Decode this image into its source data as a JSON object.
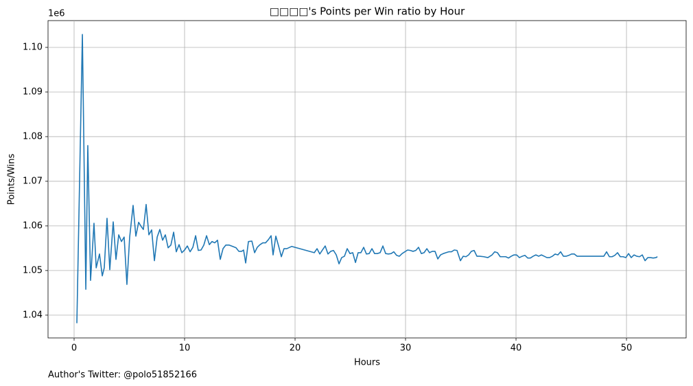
{
  "chart_data": {
    "type": "line",
    "title": "□□□□'s Points per Win ratio by Hour",
    "xlabel": "Hours",
    "ylabel": "Points/Wins",
    "y_offset_text": "1e6",
    "footer": "Author's Twitter: @polo51852166",
    "xlim": [
      -2.36,
      55.4
    ],
    "ylim": [
      1.0349,
      1.106
    ],
    "xticks": [
      0,
      10,
      20,
      30,
      40,
      50
    ],
    "yticks": [
      1.04,
      1.05,
      1.06,
      1.07,
      1.08,
      1.09,
      {
        "value": 1.1,
        "label": "1.10"
      }
    ],
    "grid": true,
    "x": [
      0.25,
      0.75,
      1.06,
      1.24,
      1.49,
      1.8,
      2.0,
      2.3,
      2.55,
      2.73,
      2.98,
      3.23,
      3.54,
      3.79,
      4.04,
      4.29,
      4.53,
      4.78,
      5.03,
      5.34,
      5.59,
      5.84,
      6.09,
      6.27,
      6.52,
      6.77,
      7.02,
      7.27,
      7.52,
      7.76,
      8.01,
      8.26,
      8.51,
      8.76,
      9.01,
      9.25,
      9.5,
      9.75,
      10.0,
      10.25,
      10.5,
      10.75,
      11.0,
      11.24,
      11.49,
      11.74,
      11.99,
      12.24,
      12.48,
      12.73,
      12.98,
      13.23,
      13.48,
      13.73,
      14.04,
      14.35,
      14.66,
      14.91,
      15.16,
      15.34,
      15.53,
      15.78,
      16.09,
      16.34,
      16.58,
      16.83,
      17.08,
      17.33,
      17.58,
      17.83,
      18.01,
      18.26,
      18.51,
      18.76,
      19.0,
      19.25,
      19.69,
      21.74,
      21.99,
      22.24,
      22.48,
      22.73,
      22.98,
      23.23,
      23.48,
      23.73,
      23.98,
      24.22,
      24.47,
      24.72,
      24.97,
      25.22,
      25.47,
      25.71,
      25.96,
      26.21,
      26.46,
      26.71,
      26.96,
      27.2,
      27.45,
      27.7,
      27.95,
      28.2,
      28.45,
      28.7,
      28.94,
      29.19,
      29.44,
      29.69,
      29.94,
      30.19,
      30.43,
      30.68,
      30.93,
      31.18,
      31.43,
      31.68,
      31.93,
      32.17,
      32.42,
      32.67,
      32.92,
      33.17,
      33.42,
      33.66,
      33.91,
      34.16,
      34.41,
      34.66,
      34.97,
      35.22,
      35.47,
      35.71,
      35.96,
      36.21,
      36.46,
      36.71,
      37.08,
      37.45,
      37.83,
      38.07,
      38.32,
      38.57,
      38.82,
      39.07,
      39.32,
      39.57,
      39.81,
      40.06,
      40.31,
      40.56,
      40.81,
      41.06,
      41.3,
      41.55,
      41.8,
      42.05,
      42.3,
      42.55,
      42.8,
      43.04,
      43.29,
      43.54,
      43.79,
      44.04,
      44.29,
      44.53,
      44.78,
      45.03,
      45.28,
      45.53,
      47.95,
      48.2,
      48.45,
      48.7,
      48.94,
      49.19,
      49.44,
      49.69,
      49.94,
      50.19,
      50.43,
      50.68,
      50.93,
      51.18,
      51.43,
      51.68,
      51.93,
      52.17,
      52.42,
      52.67,
      52.8
    ],
    "series": [
      {
        "color": "#1f77b4",
        "values": [
          1.0382,
          1.1029,
          1.0458,
          1.078,
          1.0478,
          1.0606,
          1.0506,
          1.0537,
          1.0488,
          1.0506,
          1.0617,
          1.0502,
          1.0609,
          1.0525,
          1.058,
          1.0565,
          1.0575,
          1.0469,
          1.0575,
          1.0646,
          1.0577,
          1.0608,
          1.0598,
          1.0592,
          1.0648,
          1.058,
          1.0591,
          1.0522,
          1.0575,
          1.0592,
          1.0568,
          1.058,
          1.0551,
          1.0557,
          1.0586,
          1.0542,
          1.0558,
          1.054,
          1.0546,
          1.0555,
          1.0542,
          1.0552,
          1.0578,
          1.0545,
          1.0546,
          1.0557,
          1.0578,
          1.0558,
          1.0565,
          1.0562,
          1.0568,
          1.0525,
          1.0549,
          1.0557,
          1.0557,
          1.0554,
          1.0551,
          1.0543,
          1.0543,
          1.0546,
          1.0517,
          1.0565,
          1.0566,
          1.054,
          1.0552,
          1.0558,
          1.0562,
          1.0562,
          1.0569,
          1.0578,
          1.0535,
          1.0577,
          1.0555,
          1.0531,
          1.0549,
          1.0549,
          1.0554,
          1.054,
          1.0549,
          1.0537,
          1.0546,
          1.0555,
          1.0537,
          1.0543,
          1.0545,
          1.0535,
          1.0515,
          1.0529,
          1.0532,
          1.0549,
          1.0538,
          1.054,
          1.0518,
          1.054,
          1.054,
          1.0552,
          1.0537,
          1.0538,
          1.0549,
          1.0538,
          1.0538,
          1.054,
          1.0555,
          1.0538,
          1.0537,
          1.0538,
          1.0542,
          1.0534,
          1.0532,
          1.0538,
          1.0542,
          1.0546,
          1.0545,
          1.0543,
          1.0545,
          1.0552,
          1.0538,
          1.054,
          1.0549,
          1.054,
          1.0543,
          1.0543,
          1.0526,
          1.0535,
          1.0538,
          1.054,
          1.0542,
          1.0542,
          1.0546,
          1.0545,
          1.0522,
          1.0532,
          1.0531,
          1.0535,
          1.0543,
          1.0545,
          1.0532,
          1.0532,
          1.0531,
          1.0529,
          1.0535,
          1.0542,
          1.054,
          1.0531,
          1.0531,
          1.0531,
          1.0528,
          1.0532,
          1.0535,
          1.0535,
          1.0529,
          1.0532,
          1.0534,
          1.0528,
          1.0528,
          1.0532,
          1.0535,
          1.0532,
          1.0535,
          1.0532,
          1.0529,
          1.0529,
          1.0532,
          1.0537,
          1.0535,
          1.0542,
          1.0532,
          1.0532,
          1.0534,
          1.0537,
          1.0537,
          1.0532,
          1.0532,
          1.0542,
          1.0531,
          1.0531,
          1.0534,
          1.054,
          1.0531,
          1.0531,
          1.0529,
          1.0538,
          1.0529,
          1.0535,
          1.0532,
          1.0531,
          1.0535,
          1.0522,
          1.0529,
          1.0529,
          1.0528,
          1.0529,
          1.0531
        ]
      }
    ]
  }
}
